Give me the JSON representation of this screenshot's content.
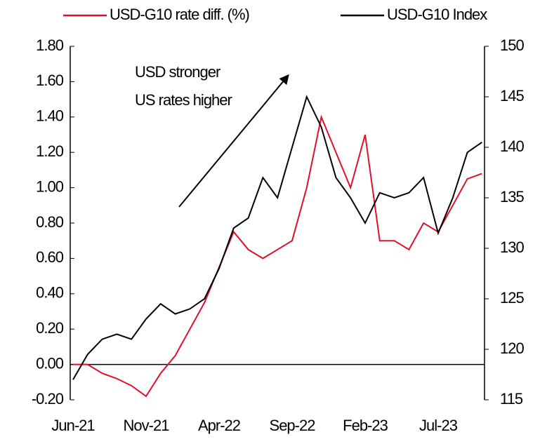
{
  "chart_data": {
    "type": "line",
    "categories": [
      "Jun-21",
      null,
      null,
      null,
      null,
      "Nov-21",
      null,
      null,
      null,
      null,
      "Apr-22",
      null,
      null,
      null,
      null,
      "Sep-22",
      null,
      null,
      null,
      null,
      "Feb-23",
      null,
      null,
      null,
      null,
      "Jul-23",
      null,
      null,
      null
    ],
    "series": [
      {
        "name": "USD-G10 rate diff. (%)",
        "color": "#e0102a",
        "axis": "y",
        "values": [
          0.0,
          0.0,
          -0.05,
          -0.08,
          -0.12,
          -0.18,
          -0.05,
          0.05,
          0.2,
          0.35,
          0.55,
          0.75,
          0.65,
          0.6,
          0.65,
          0.7,
          1.0,
          1.4,
          1.2,
          1.0,
          1.3,
          0.7,
          0.7,
          0.65,
          0.8,
          0.75,
          0.9,
          1.05,
          1.08
        ]
      },
      {
        "name": "USD-G10 Index",
        "color": "#000000",
        "axis": "y2",
        "values": [
          117,
          119.5,
          121,
          121.5,
          121,
          123,
          124.5,
          123.5,
          124,
          125,
          128,
          132,
          133,
          137,
          135,
          140,
          145,
          142,
          137,
          135,
          132.5,
          135.5,
          135,
          135.5,
          137,
          131.5,
          135,
          139.5,
          140.5
        ]
      }
    ],
    "ylim": [
      -0.2,
      1.8
    ],
    "yticks": [
      {
        "value": -0.2,
        "label": "-0.20"
      },
      {
        "value": 0,
        "label": "0.00"
      },
      {
        "value": 0.2,
        "label": "0.20"
      },
      {
        "value": 0.4,
        "label": "0.40"
      },
      {
        "value": 0.6,
        "label": "0.60"
      },
      {
        "value": 0.8,
        "label": "0.80"
      },
      {
        "value": 1.0,
        "label": "1.00"
      },
      {
        "value": 1.2,
        "label": "1.20"
      },
      {
        "value": 1.4,
        "label": "1.40"
      },
      {
        "value": 1.6,
        "label": "1.60"
      },
      {
        "value": 1.8,
        "label": "1.80"
      }
    ],
    "y2lim": [
      115,
      150
    ],
    "y2ticks": [
      115,
      120,
      125,
      130,
      135,
      140,
      145,
      150
    ],
    "annotations": [
      "USD stronger",
      "US rates higher"
    ],
    "grid": false,
    "legend": "top"
  }
}
